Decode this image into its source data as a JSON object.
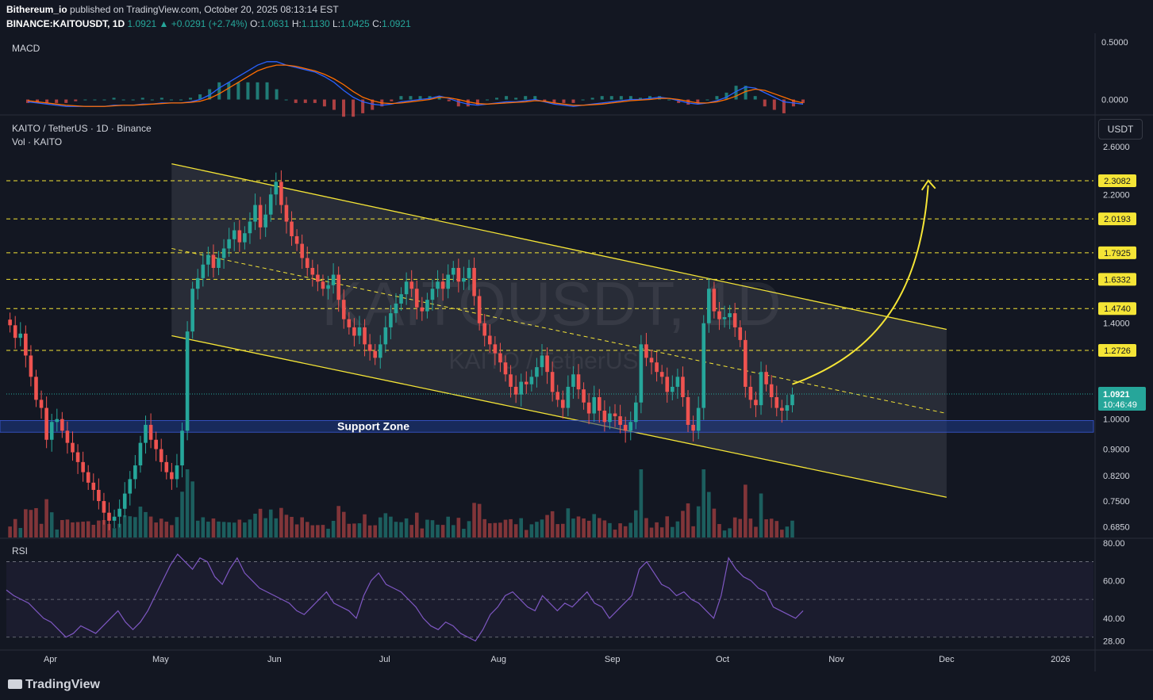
{
  "header": {
    "publisher": "Bithereum_io",
    "published_text": "published on TradingView.com, October 20, 2025 08:13:14 EST",
    "symbol": "BINANCE:KAITOUSDT, 1D",
    "last": "1.0921",
    "change": "▲ +0.0291 (+2.74%)",
    "o_label": "O:",
    "o": "1.0631",
    "h_label": "H:",
    "h": "1.1130",
    "l_label": "L:",
    "l": "1.0425",
    "c_label": "C:",
    "c": "1.0921"
  },
  "panes": {
    "macd_label": "MACD",
    "main_title": "KAITO / TetherUS · 1D · Binance",
    "vol_label": "Vol · KAITO",
    "rsi_label": "RSI",
    "currency_button": "USDT",
    "watermark_symbol": "KAITOUSDT, 1D",
    "watermark_name": "KAITO / TetherUS",
    "support_label": "Support Zone"
  },
  "price_badge": {
    "price": "1.0921",
    "countdown": "10:46:49"
  },
  "footer": {
    "brand": "TradingView"
  },
  "colors": {
    "up": "#26a69a",
    "down": "#ef5350",
    "level": "#f5e536",
    "support": "#1e3a8a",
    "macd": "#2962ff",
    "signal": "#ff6d00",
    "rsi": "#7e57c2"
  },
  "chart_data": {
    "type": "candlestick",
    "title": "KAITO / TetherUS · 1D · Binance",
    "y_scale": "log",
    "ylim": [
      0.66,
      2.9
    ],
    "y_ticks": [
      "2.6000",
      "2.2000",
      "1.4000",
      "1.0000",
      "0.9000",
      "0.8200",
      "0.7500",
      "0.6850"
    ],
    "x_ticks": [
      "Apr",
      "May",
      "Jun",
      "Jul",
      "Aug",
      "Sep",
      "Oct",
      "Nov",
      "Dec",
      "2026"
    ],
    "x_range": [
      "2025-03-20",
      "2026-01-10"
    ],
    "level_lines": [
      "2.3082",
      "2.0193",
      "1.7925",
      "1.6332",
      "1.4740",
      "1.2726"
    ],
    "current_price": 1.0921,
    "support_zone": [
      0.955,
      0.995
    ],
    "channel": {
      "upper": [
        [
          "2025-05-04",
          2.45
        ],
        [
          "2025-12-01",
          1.37
        ]
      ],
      "lower": [
        [
          "2025-05-04",
          1.34
        ],
        [
          "2025-12-01",
          0.76
        ]
      ],
      "mid": [
        [
          "2025-05-04",
          1.82
        ],
        [
          "2025-12-01",
          1.02
        ]
      ]
    },
    "projection_arrow": {
      "from": [
        "2025-10-20",
        1.13
      ],
      "to": [
        "2025-11-26",
        2.31
      ]
    },
    "closes": [
      1.39,
      1.33,
      1.35,
      1.25,
      1.16,
      1.07,
      1.04,
      0.93,
      0.99,
      1.0,
      0.96,
      0.92,
      0.89,
      0.86,
      0.83,
      0.8,
      0.78,
      0.75,
      0.72,
      0.7,
      0.71,
      0.73,
      0.77,
      0.81,
      0.85,
      0.92,
      0.98,
      0.93,
      0.9,
      0.86,
      0.83,
      0.81,
      0.85,
      0.96,
      1.36,
      1.58,
      1.64,
      1.72,
      1.78,
      1.7,
      1.76,
      1.82,
      1.88,
      1.94,
      1.86,
      1.92,
      2.0,
      2.12,
      1.96,
      2.05,
      2.2,
      2.3,
      2.12,
      2.0,
      1.9,
      1.85,
      1.76,
      1.7,
      1.66,
      1.62,
      1.58,
      1.6,
      1.66,
      1.52,
      1.42,
      1.38,
      1.34,
      1.38,
      1.3,
      1.27,
      1.24,
      1.3,
      1.38,
      1.45,
      1.5,
      1.55,
      1.62,
      1.58,
      1.48,
      1.46,
      1.52,
      1.58,
      1.62,
      1.58,
      1.66,
      1.7,
      1.62,
      1.64,
      1.7,
      1.54,
      1.4,
      1.34,
      1.3,
      1.26,
      1.22,
      1.17,
      1.12,
      1.09,
      1.14,
      1.13,
      1.16,
      1.2,
      1.25,
      1.18,
      1.1,
      1.07,
      1.04,
      1.12,
      1.17,
      1.11,
      1.06,
      1.02,
      1.08,
      1.03,
      0.99,
      1.02,
      1.01,
      0.98,
      0.96,
      0.99,
      1.06,
      1.3,
      1.24,
      1.22,
      1.18,
      1.16,
      1.1,
      1.12,
      1.16,
      1.08,
      0.98,
      0.96,
      1.04,
      1.4,
      1.58,
      1.46,
      1.42,
      1.43,
      1.45,
      1.38,
      1.32,
      1.12,
      1.07,
      1.05,
      1.18,
      1.13,
      1.08,
      1.04,
      1.03,
      1.05,
      1.09
    ],
    "macd": [
      -0.02,
      -0.03,
      -0.04,
      -0.05,
      -0.06,
      -0.06,
      -0.06,
      -0.06,
      -0.06,
      -0.05,
      -0.05,
      -0.05,
      -0.04,
      -0.04,
      -0.03,
      -0.03,
      -0.03,
      -0.02,
      0.0,
      0.04,
      0.1,
      0.15,
      0.2,
      0.25,
      0.3,
      0.33,
      0.33,
      0.3,
      0.28,
      0.26,
      0.24,
      0.2,
      0.15,
      0.08,
      0.02,
      -0.02,
      -0.04,
      -0.05,
      -0.04,
      -0.02,
      -0.01,
      0.0,
      0.01,
      0.03,
      0.01,
      -0.02,
      -0.04,
      -0.05,
      -0.04,
      -0.03,
      -0.02,
      -0.02,
      -0.01,
      0.0,
      -0.02,
      -0.04,
      -0.05,
      -0.06,
      -0.05,
      -0.04,
      -0.03,
      -0.02,
      -0.01,
      0.0,
      0.0,
      0.01,
      0.02,
      0.01,
      -0.01,
      -0.03,
      -0.04,
      -0.03,
      -0.01,
      0.02,
      0.07,
      0.11,
      0.1,
      0.06,
      0.02,
      -0.02,
      -0.03,
      -0.04
    ],
    "signal": [
      -0.01,
      -0.02,
      -0.03,
      -0.04,
      -0.05,
      -0.055,
      -0.06,
      -0.06,
      -0.06,
      -0.055,
      -0.05,
      -0.05,
      -0.045,
      -0.04,
      -0.035,
      -0.03,
      -0.03,
      -0.025,
      -0.015,
      0.01,
      0.05,
      0.1,
      0.15,
      0.2,
      0.25,
      0.28,
      0.3,
      0.3,
      0.29,
      0.27,
      0.25,
      0.22,
      0.18,
      0.13,
      0.07,
      0.02,
      -0.01,
      -0.03,
      -0.035,
      -0.03,
      -0.02,
      -0.01,
      0.0,
      0.02,
      0.015,
      0.0,
      -0.02,
      -0.035,
      -0.04,
      -0.035,
      -0.03,
      -0.025,
      -0.02,
      -0.01,
      -0.015,
      -0.03,
      -0.04,
      -0.05,
      -0.05,
      -0.045,
      -0.04,
      -0.03,
      -0.02,
      -0.01,
      -0.005,
      0.0,
      0.01,
      0.01,
      0.0,
      -0.015,
      -0.03,
      -0.03,
      -0.02,
      0.0,
      0.03,
      0.07,
      0.09,
      0.08,
      0.05,
      0.02,
      -0.01,
      -0.03
    ],
    "macd_ylim": [
      -0.1,
      0.55
    ],
    "macd_ticks": [
      "0.5000",
      "0.0000"
    ],
    "rsi": [
      55,
      52,
      50,
      48,
      44,
      40,
      38,
      34,
      30,
      32,
      36,
      34,
      32,
      36,
      40,
      44,
      38,
      34,
      38,
      44,
      52,
      60,
      68,
      74,
      70,
      66,
      72,
      70,
      62,
      58,
      66,
      72,
      64,
      60,
      56,
      54,
      52,
      50,
      48,
      44,
      42,
      46,
      50,
      54,
      48,
      46,
      44,
      40,
      52,
      60,
      64,
      58,
      56,
      54,
      50,
      46,
      40,
      36,
      34,
      38,
      36,
      32,
      30,
      28,
      34,
      42,
      46,
      52,
      54,
      50,
      46,
      44,
      52,
      48,
      44,
      48,
      46,
      50,
      54,
      48,
      46,
      40,
      44,
      48,
      52,
      66,
      70,
      64,
      58,
      56,
      52,
      54,
      50,
      48,
      44,
      40,
      52,
      72,
      66,
      62,
      60,
      56,
      54,
      46,
      44,
      42,
      40,
      44
    ],
    "rsi_ylim": [
      24,
      82
    ],
    "rsi_ticks": [
      "80.00",
      "60.00",
      "40.00",
      "28.00"
    ],
    "rsi_bands": [
      70,
      50,
      30
    ]
  }
}
